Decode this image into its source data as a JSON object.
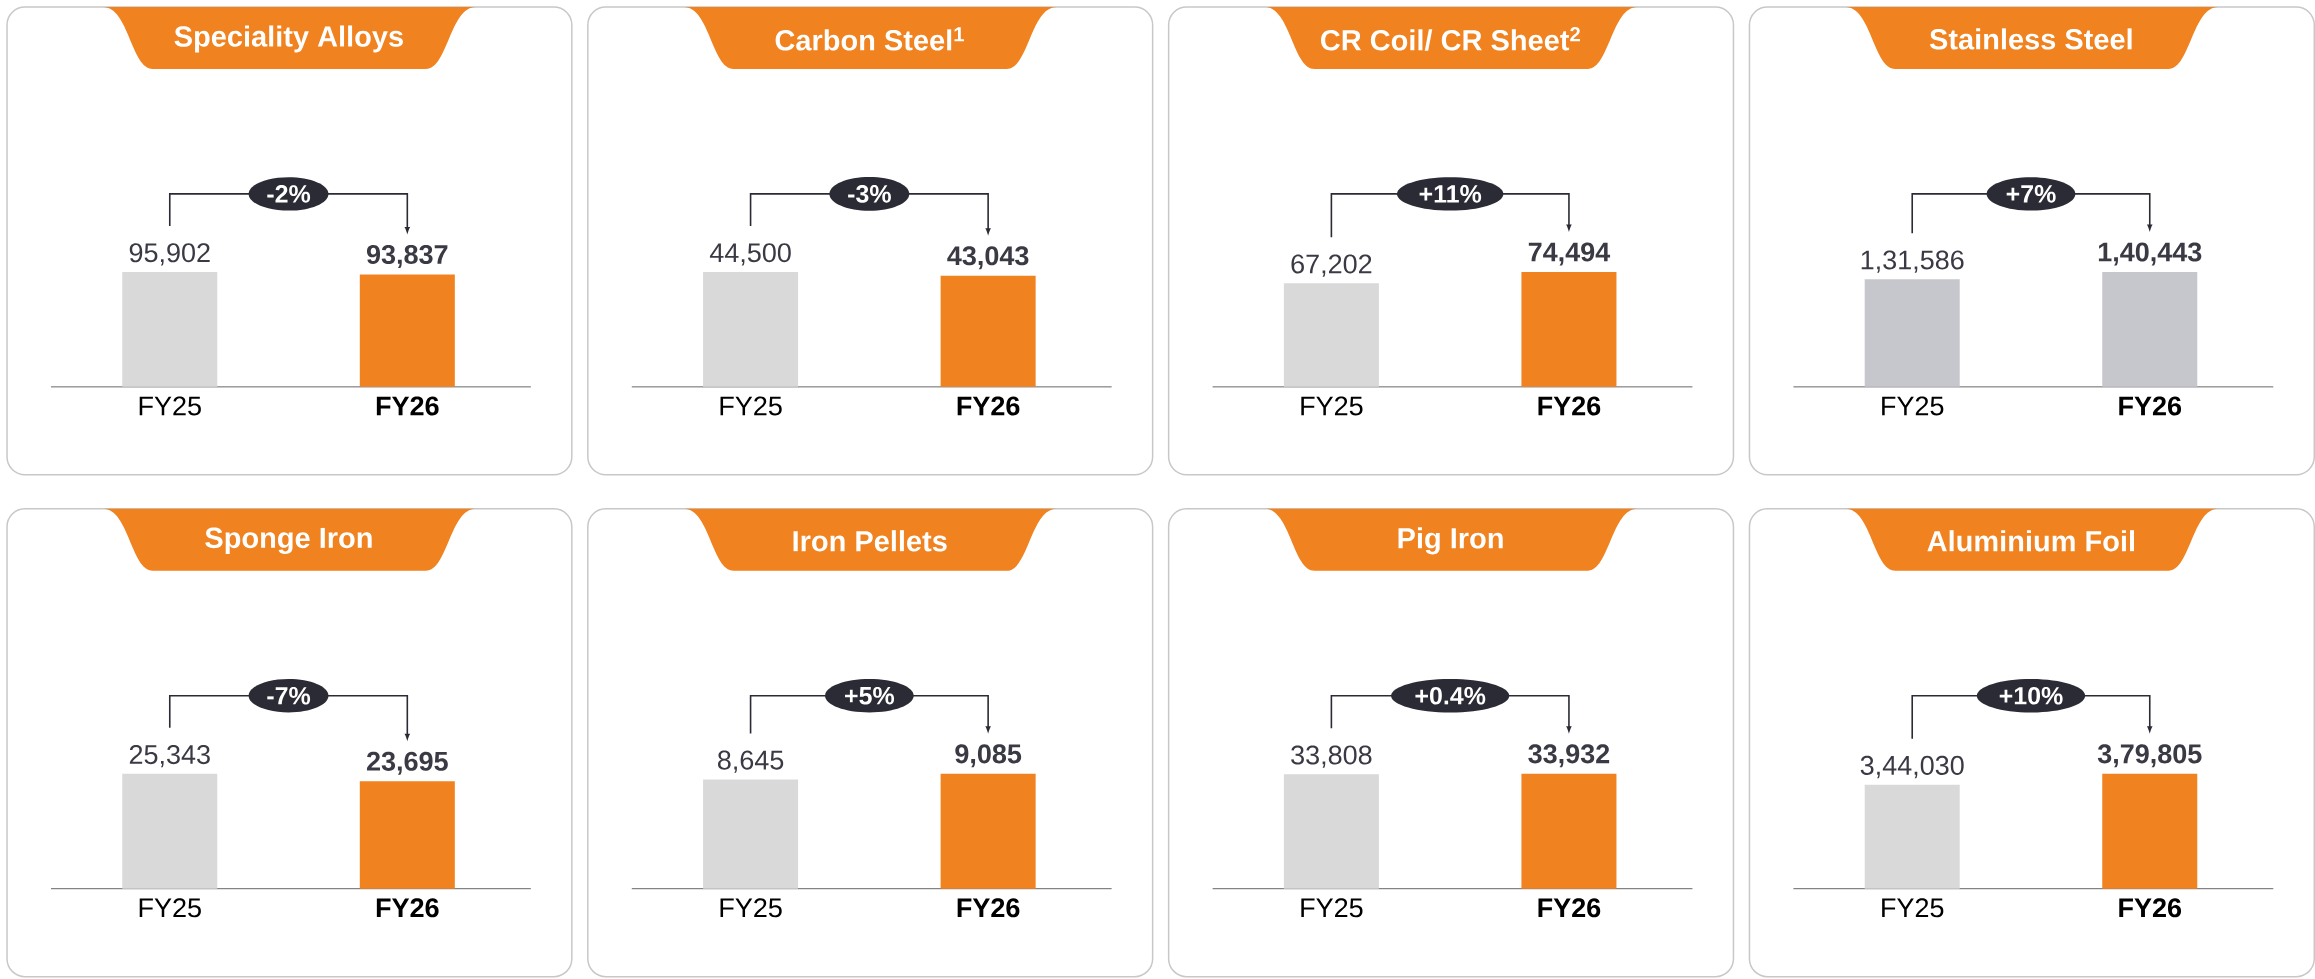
{
  "chart_data": [
    {
      "type": "bar",
      "title": "Speciality Alloys",
      "categories": [
        "FY25",
        "FY26"
      ],
      "values": [
        95902,
        93837
      ],
      "colors": [
        "#d9d9d9",
        "#f0821f"
      ],
      "value_labels": [
        "95,902",
        "93,837"
      ],
      "annotations": [
        "-2%"
      ]
    },
    {
      "type": "bar",
      "title": "Carbon Steel$^{1}$",
      "categories": [
        "FY25",
        "FY26"
      ],
      "values": [
        44500,
        43043
      ],
      "colors": [
        "#d9d9d9",
        "#f0821f"
      ],
      "value_labels": [
        "44,500",
        "43,043"
      ],
      "annotations": [
        "-3%"
      ]
    },
    {
      "type": "bar",
      "title": "CR Coil/ CR Sheet$^{2}$",
      "categories": [
        "FY25",
        "FY26"
      ],
      "values": [
        67202,
        74494
      ],
      "colors": [
        "#d9d9d9",
        "#f0821f"
      ],
      "value_labels": [
        "67,202",
        "74,494"
      ],
      "annotations": [
        "+11%"
      ]
    },
    {
      "type": "bar",
      "title": "Stainless Steel",
      "categories": [
        "FY25",
        "FY26"
      ],
      "values": [
        131586,
        140443
      ],
      "colors": [
        "#c6c6cd",
        "#c6c6cd"
      ],
      "value_labels": [
        "1,31,586",
        "1,40,443"
      ],
      "annotations": [
        "+7%"
      ]
    },
    {
      "type": "bar",
      "title": "Sponge Iron",
      "categories": [
        "FY25",
        "FY26"
      ],
      "values": [
        25343,
        23695
      ],
      "colors": [
        "#d9d9d9",
        "#f0821f"
      ],
      "value_labels": [
        "25,343",
        "23,695"
      ],
      "annotations": [
        "-7%"
      ]
    },
    {
      "type": "bar",
      "title": "Iron Pellets",
      "categories": [
        "FY25",
        "FY26"
      ],
      "values": [
        8645,
        9085
      ],
      "colors": [
        "#d9d9d9",
        "#f0821f"
      ],
      "value_labels": [
        "8,645",
        "9,085"
      ],
      "annotations": [
        "+5%"
      ]
    },
    {
      "type": "bar",
      "title": "Pig Iron",
      "categories": [
        "FY25",
        "FY26"
      ],
      "values": [
        33808,
        33932
      ],
      "colors": [
        "#d9d9d9",
        "#f0821f"
      ],
      "value_labels": [
        "33,808",
        "33,932"
      ],
      "annotations": [
        "+0.4%"
      ]
    },
    {
      "type": "bar",
      "title": "Aluminium Foil",
      "categories": [
        "FY25",
        "FY26"
      ],
      "values": [
        344030,
        379805
      ],
      "colors": [
        "#d9d9d9",
        "#f0821f"
      ],
      "value_labels": [
        "3,44,030",
        "3,79,805"
      ],
      "annotations": [
        "+10%"
      ]
    }
  ]
}
